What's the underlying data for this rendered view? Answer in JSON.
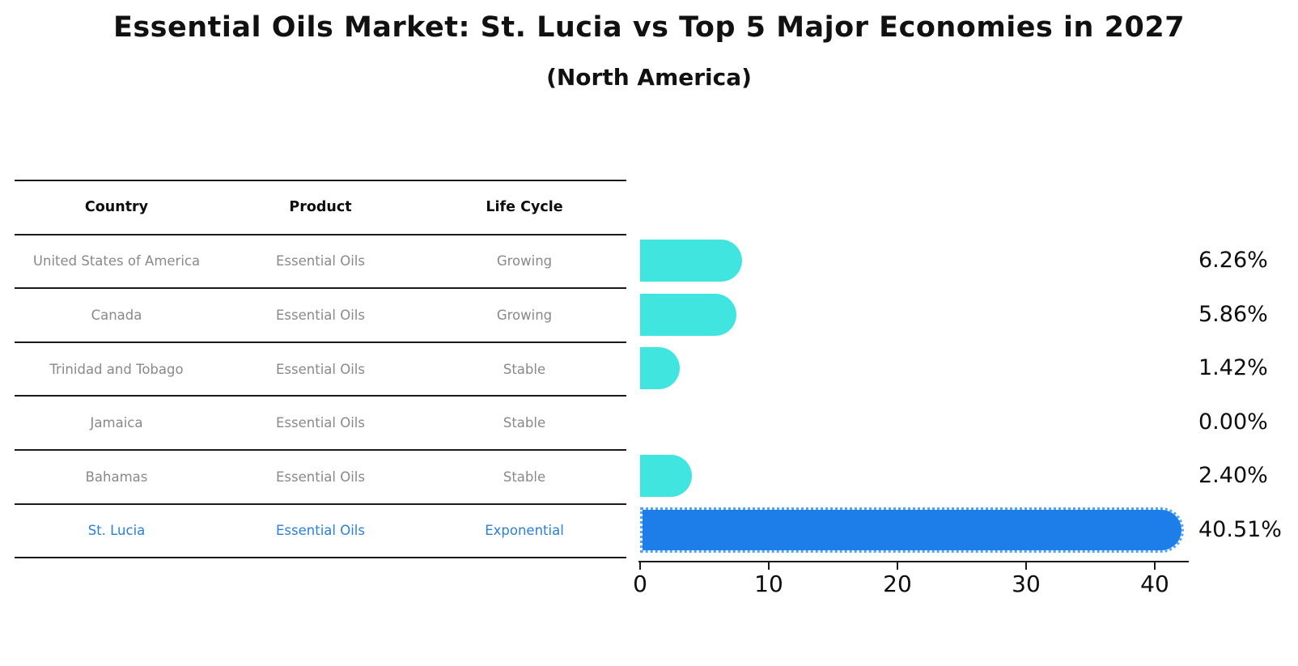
{
  "title": "Essential Oils Market: St. Lucia vs Top 5 Major Economies in 2027",
  "subtitle": "(North America)",
  "table": {
    "columns": [
      "Country",
      "Product",
      "Life Cycle"
    ],
    "rows": [
      {
        "country": "United States of America",
        "product": "Essential Oils",
        "life_cycle": "Growing",
        "value_label": "6.26%",
        "highlight": false
      },
      {
        "country": "Canada",
        "product": "Essential Oils",
        "life_cycle": "Growing",
        "value_label": "5.86%",
        "highlight": false
      },
      {
        "country": "Trinidad and Tobago",
        "product": "Essential Oils",
        "life_cycle": "Stable",
        "value_label": "1.42%",
        "highlight": false
      },
      {
        "country": "Jamaica",
        "product": "Essential Oils",
        "life_cycle": "Stable",
        "value_label": "0.00%",
        "highlight": false
      },
      {
        "country": "Bahamas",
        "product": "Essential Oils",
        "life_cycle": "Stable",
        "value_label": "2.40%",
        "highlight": false
      },
      {
        "country": "St. Lucia",
        "product": "Essential Oils",
        "life_cycle": "Exponential",
        "value_label": "40.51%",
        "highlight": true
      }
    ]
  },
  "chart_data": {
    "type": "bar",
    "orientation": "horizontal",
    "title": "Essential Oils Market: St. Lucia vs Top 5 Major Economies in 2027",
    "subtitle": "(North America)",
    "categories": [
      "United States of America",
      "Canada",
      "Trinidad and Tobago",
      "Jamaica",
      "Bahamas",
      "St. Lucia"
    ],
    "values": [
      6.26,
      5.86,
      1.42,
      0.0,
      2.4,
      40.51
    ],
    "value_labels": [
      "6.26%",
      "5.86%",
      "1.42%",
      "0.00%",
      "2.40%",
      "40.51%"
    ],
    "unit": "percent",
    "x_ticks": [
      0,
      10,
      20,
      30,
      40
    ],
    "xlim": [
      0,
      42.7
    ],
    "grid": false,
    "legend": false,
    "highlight_index": 5,
    "colors": {
      "bar_default": "#41e5e0",
      "bar_highlight": "#1e7ee9",
      "bar_highlight_edge": "#4fa5f3",
      "highlight_text": "#2b80d9",
      "row_text": "#898989",
      "header_text": "#0d0d0d",
      "axis": "#1a1a1a"
    }
  }
}
